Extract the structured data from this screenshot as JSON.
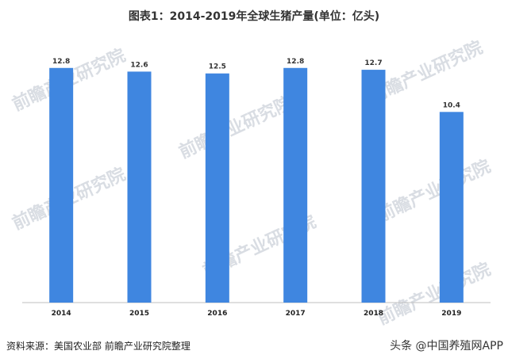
{
  "title": "图表1：2014-2019年全球生猪产量(单位：亿头)",
  "source_note": "资料来源：美国农业部 前瞻产业研究院整理",
  "brand_mark": "头条 @中国养殖网APP",
  "watermark_text": "前瞻产业研究院",
  "chart_data": {
    "type": "bar",
    "title": "图表1：2014-2019年全球生猪产量(单位：亿头)",
    "categories": [
      "2014",
      "2015",
      "2016",
      "2017",
      "2018",
      "2019"
    ],
    "values": [
      12.8,
      12.6,
      12.5,
      12.8,
      12.7,
      10.4
    ],
    "data_labels": [
      "12.8",
      "12.6",
      "12.5",
      "12.8",
      "12.7",
      "10.4"
    ],
    "ylim": [
      0,
      14
    ],
    "bar_color": "#3f86e0",
    "grid": false,
    "legend": "none"
  }
}
